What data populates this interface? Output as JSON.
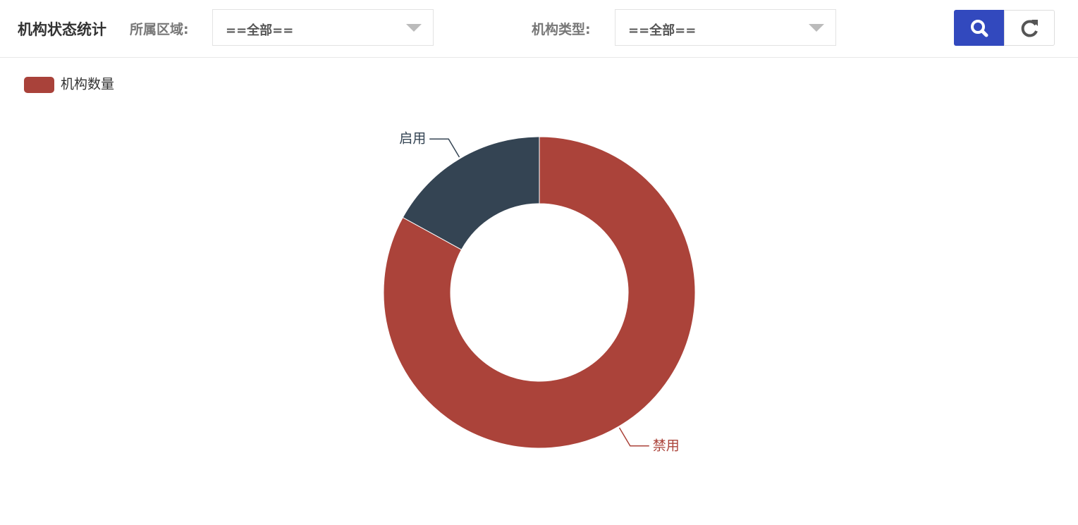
{
  "header": {
    "title": "机构状态统计",
    "region_label": "所属区域:",
    "region_value": "==全部==",
    "type_label": "机构类型:",
    "type_value": "==全部=="
  },
  "chart_data": {
    "type": "pie",
    "series_name": "机构数量",
    "categories": [
      "禁用",
      "启用"
    ],
    "values": [
      83,
      17
    ],
    "colors": [
      "#ab433a",
      "#344453"
    ],
    "donut": true
  }
}
